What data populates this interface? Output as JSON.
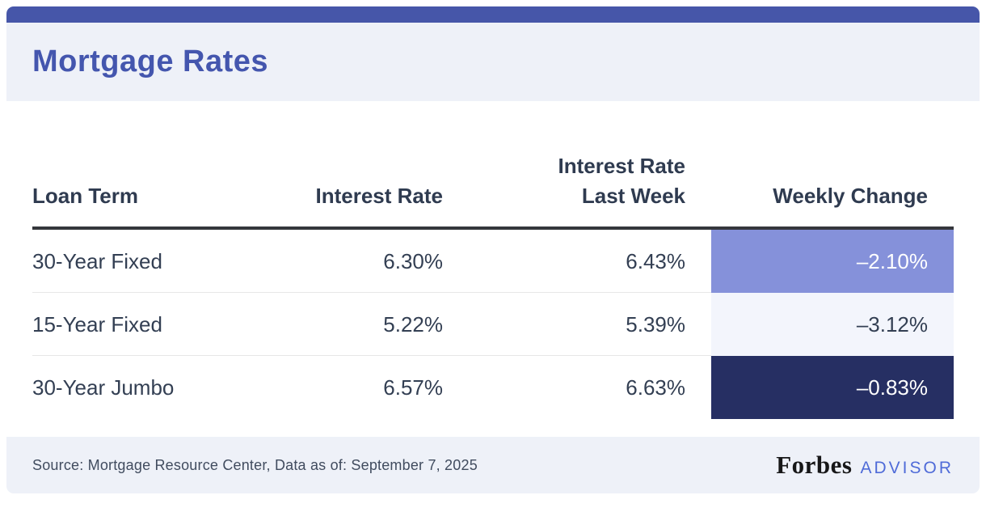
{
  "title": "Mortgage Rates",
  "colors": {
    "top-bar": "#4656a9",
    "band-bg": "#eef1f8",
    "title": "#4456ae",
    "header-text": "#2f3b50",
    "cell-text": "#333f53",
    "header-border": "#35373c",
    "row-divider": "#e7e7e7",
    "advisor-blue": "#4f6bd8",
    "forbes-black": "#171718"
  },
  "chart_data": {
    "type": "table",
    "title": "Mortgage Rates",
    "columns": [
      "Loan Term",
      "Interest Rate",
      "Interest Rate Last Week",
      "Weekly Change"
    ],
    "rows": [
      [
        "30-Year Fixed",
        "6.30%",
        "6.43%",
        "-2.10%"
      ],
      [
        "15-Year Fixed",
        "5.22%",
        "5.39%",
        "-3.12%"
      ],
      [
        "30-Year Jumbo",
        "6.57%",
        "6.63%",
        "-0.83%"
      ]
    ]
  },
  "table": {
    "headers": {
      "loan_term": "Loan Term",
      "interest_rate": "Interest Rate",
      "last_week_line1": "Interest Rate",
      "last_week_line2": "Last Week",
      "weekly_change": "Weekly Change"
    },
    "rows": [
      {
        "loan_term": "30-Year Fixed",
        "interest_rate": "6.30%",
        "last_week": "6.43%",
        "weekly_change": "–2.10%",
        "change_bg": "#8591da",
        "change_text": "#ffffff"
      },
      {
        "loan_term": "15-Year Fixed",
        "interest_rate": "5.22%",
        "last_week": "5.39%",
        "weekly_change": "–3.12%",
        "change_bg": "#f3f5fc",
        "change_text": "#333f53"
      },
      {
        "loan_term": "30-Year Jumbo",
        "interest_rate": "6.57%",
        "last_week": "6.63%",
        "weekly_change": "–0.83%",
        "change_bg": "#262f63",
        "change_text": "#ffffff"
      }
    ]
  },
  "footer": {
    "source": "Source: Mortgage Resource Center, Data as of: September 7, 2025",
    "brand_name": "Forbes",
    "brand_suffix": "ADVISOR"
  }
}
